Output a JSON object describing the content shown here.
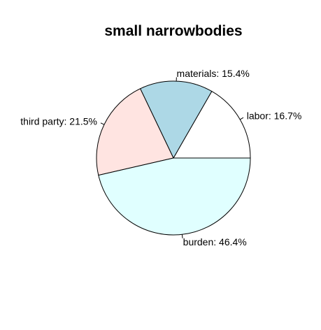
{
  "chart_data": {
    "type": "pie",
    "title": "small narrowbodies",
    "start_angle_deg": 0,
    "direction": "counterclockwise",
    "slices": [
      {
        "label": "labor: 16.7%",
        "value": 16.7,
        "color": "#ffffff"
      },
      {
        "label": "materials: 15.4%",
        "value": 15.4,
        "color": "#add8e6"
      },
      {
        "label": "third party: 21.5%",
        "value": 21.5,
        "color": "#ffe4e1"
      },
      {
        "label": "burden: 46.4%",
        "value": 46.4,
        "color": "#e0ffff"
      }
    ]
  }
}
